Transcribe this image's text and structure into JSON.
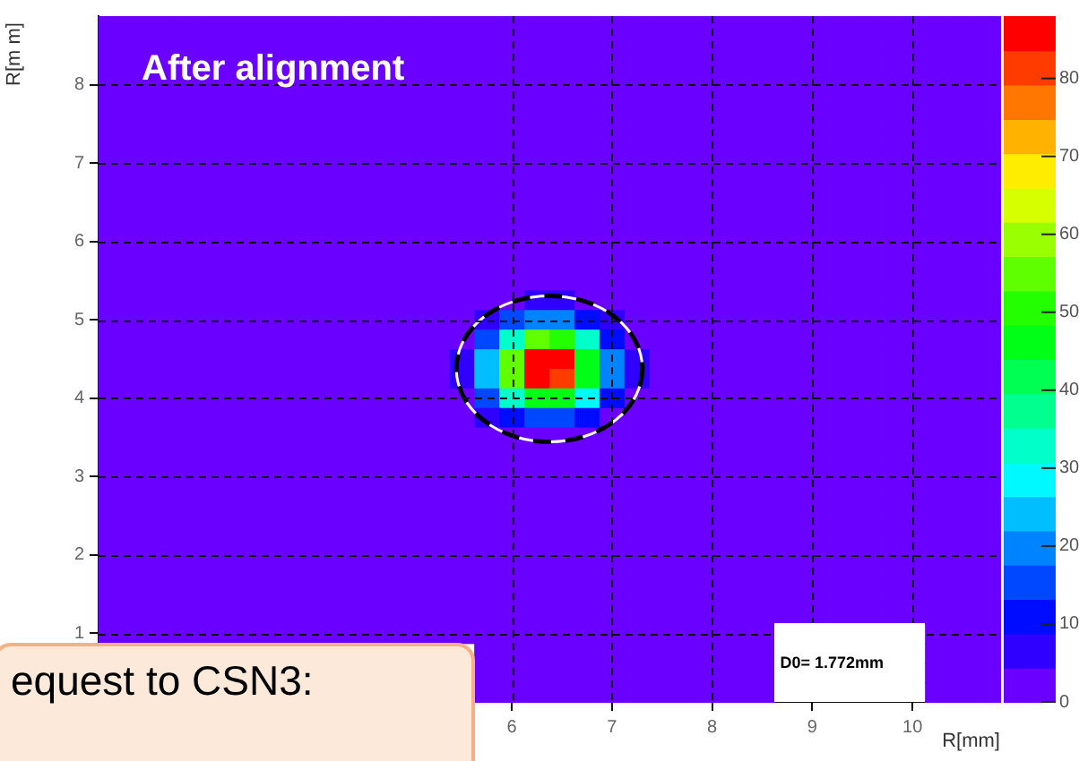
{
  "chart_data": {
    "type": "heatmap",
    "title": "After alignment",
    "xlabel": "R[mm]",
    "ylabel": "R[m m]",
    "annotations": [
      "D0= 1.772mm",
      "equest to CSN3:"
    ],
    "clim": [
      0,
      88
    ],
    "cticks": [
      0,
      10,
      20,
      30,
      40,
      50,
      60,
      70,
      80
    ],
    "grid": true,
    "legend": false,
    "categories": [
      null,
      null,
      null,
      null,
      null,
      null,
      null,
      null,
      null,
      null,
      null,
      null,
      null,
      null,
      null,
      null,
      "6",
      null,
      null,
      null,
      "7",
      null,
      null,
      null,
      "8",
      null,
      null,
      null,
      "9",
      null,
      null,
      null,
      "10",
      null,
      null,
      null
    ],
    "y_categories": [
      null,
      null,
      null,
      "8",
      null,
      null,
      null,
      "7",
      null,
      null,
      null,
      "6",
      null,
      null,
      null,
      "5",
      null,
      null,
      null,
      "4",
      null,
      null,
      null,
      "3",
      null,
      null,
      null,
      "2",
      null,
      null,
      null,
      "1",
      null,
      null,
      null
    ],
    "cells": [
      [
        0,
        0,
        0,
        0,
        0,
        0,
        0,
        0,
        0,
        0,
        0,
        0,
        0,
        0,
        0,
        0,
        0,
        0,
        0,
        0,
        0,
        0,
        0,
        0,
        0,
        0,
        0,
        0,
        0,
        0,
        0,
        0,
        0,
        0,
        0,
        0
      ],
      [
        0,
        0,
        0,
        0,
        0,
        0,
        0,
        0,
        0,
        0,
        0,
        0,
        0,
        0,
        0,
        0,
        0,
        0,
        0,
        0,
        0,
        0,
        0,
        0,
        0,
        0,
        0,
        0,
        0,
        0,
        0,
        0,
        0,
        0,
        0,
        0
      ],
      [
        0,
        0,
        0,
        0,
        0,
        0,
        0,
        0,
        0,
        0,
        0,
        0,
        0,
        0,
        0,
        0,
        0,
        0,
        0,
        0,
        0,
        0,
        0,
        0,
        0,
        0,
        0,
        0,
        0,
        0,
        0,
        0,
        0,
        0,
        0,
        0
      ],
      [
        0,
        0,
        0,
        0,
        0,
        0,
        0,
        0,
        0,
        0,
        0,
        0,
        0,
        0,
        0,
        0,
        0,
        0,
        0,
        0,
        0,
        0,
        0,
        0,
        0,
        0,
        0,
        0,
        0,
        0,
        0,
        0,
        0,
        0,
        0,
        0
      ],
      [
        0,
        0,
        0,
        0,
        0,
        0,
        0,
        0,
        0,
        0,
        0,
        0,
        0,
        0,
        0,
        0,
        0,
        0,
        0,
        0,
        0,
        0,
        0,
        0,
        0,
        0,
        0,
        0,
        0,
        0,
        0,
        0,
        0,
        0,
        0,
        0
      ],
      [
        0,
        0,
        0,
        0,
        0,
        0,
        0,
        0,
        0,
        0,
        0,
        0,
        0,
        0,
        0,
        0,
        0,
        0,
        0,
        0,
        0,
        0,
        0,
        0,
        0,
        0,
        0,
        0,
        0,
        0,
        0,
        0,
        0,
        0,
        0,
        0
      ],
      [
        0,
        0,
        0,
        0,
        0,
        0,
        0,
        0,
        0,
        0,
        0,
        0,
        0,
        0,
        0,
        0,
        0,
        0,
        0,
        0,
        0,
        0,
        0,
        0,
        0,
        0,
        0,
        0,
        0,
        0,
        0,
        0,
        0,
        0,
        0,
        0
      ],
      [
        0,
        0,
        0,
        0,
        0,
        0,
        0,
        0,
        0,
        0,
        0,
        0,
        0,
        0,
        0,
        0,
        0,
        0,
        0,
        0,
        0,
        0,
        0,
        0,
        0,
        0,
        0,
        0,
        0,
        0,
        0,
        0,
        0,
        0,
        0,
        0
      ],
      [
        0,
        0,
        0,
        0,
        0,
        0,
        0,
        0,
        0,
        0,
        0,
        0,
        0,
        0,
        0,
        0,
        0,
        0,
        0,
        0,
        0,
        0,
        0,
        0,
        0,
        0,
        0,
        0,
        0,
        0,
        0,
        0,
        0,
        0,
        0,
        0
      ],
      [
        0,
        0,
        0,
        0,
        0,
        0,
        0,
        0,
        0,
        0,
        0,
        0,
        0,
        0,
        0,
        0,
        0,
        0,
        0,
        0,
        0,
        0,
        0,
        0,
        0,
        0,
        0,
        0,
        0,
        0,
        0,
        0,
        0,
        0,
        0,
        0
      ],
      [
        0,
        0,
        0,
        0,
        0,
        0,
        0,
        0,
        0,
        0,
        0,
        0,
        0,
        0,
        0,
        0,
        0,
        0,
        0,
        0,
        0,
        0,
        0,
        0,
        0,
        0,
        0,
        0,
        0,
        0,
        0,
        0,
        0,
        0,
        0,
        0
      ],
      [
        0,
        0,
        0,
        0,
        0,
        0,
        0,
        0,
        0,
        0,
        0,
        0,
        0,
        0,
        0,
        0,
        0,
        0,
        0,
        0,
        0,
        0,
        0,
        0,
        0,
        0,
        0,
        0,
        0,
        0,
        0,
        0,
        0,
        0,
        0,
        0
      ],
      [
        0,
        0,
        0,
        0,
        0,
        0,
        0,
        0,
        0,
        0,
        0,
        0,
        0,
        0,
        0,
        0,
        0,
        0,
        0,
        0,
        0,
        0,
        0,
        0,
        0,
        0,
        0,
        0,
        0,
        0,
        0,
        0,
        0,
        0,
        0,
        0
      ],
      [
        0,
        0,
        0,
        0,
        0,
        0,
        0,
        0,
        0,
        0,
        0,
        0,
        0,
        0,
        0,
        0,
        0,
        0,
        0,
        0,
        0,
        0,
        0,
        0,
        0,
        0,
        0,
        0,
        0,
        0,
        0,
        0,
        0,
        0,
        0,
        0
      ],
      [
        0,
        0,
        0,
        0,
        0,
        0,
        0,
        0,
        0,
        0,
        0,
        0,
        0,
        0,
        0,
        2,
        3,
        5,
        5,
        3,
        1,
        0,
        0,
        0,
        0,
        0,
        0,
        0,
        0,
        0,
        0,
        0,
        0,
        0,
        0,
        0
      ],
      [
        0,
        0,
        0,
        0,
        0,
        0,
        0,
        0,
        0,
        0,
        0,
        0,
        0,
        0,
        2,
        6,
        14,
        21,
        20,
        13,
        5,
        1,
        0,
        0,
        0,
        0,
        0,
        0,
        0,
        0,
        0,
        0,
        0,
        0,
        0,
        0
      ],
      [
        0,
        0,
        0,
        0,
        0,
        0,
        0,
        0,
        0,
        0,
        0,
        0,
        0,
        0,
        4,
        16,
        35,
        53,
        51,
        31,
        13,
        3,
        0,
        0,
        0,
        0,
        0,
        0,
        0,
        0,
        0,
        0,
        0,
        0,
        0,
        0
      ],
      [
        0,
        0,
        0,
        0,
        0,
        0,
        0,
        0,
        0,
        0,
        0,
        0,
        0,
        0,
        7,
        25,
        55,
        87,
        84,
        48,
        19,
        5,
        0,
        0,
        0,
        0,
        0,
        0,
        0,
        0,
        0,
        0,
        0,
        0,
        0,
        0
      ],
      [
        0,
        0,
        0,
        0,
        0,
        0,
        0,
        0,
        0,
        0,
        0,
        0,
        0,
        0,
        6,
        23,
        53,
        84,
        80,
        46,
        19,
        5,
        0,
        0,
        0,
        0,
        0,
        0,
        0,
        0,
        0,
        0,
        0,
        0,
        0,
        0
      ],
      [
        0,
        0,
        0,
        0,
        0,
        0,
        0,
        0,
        0,
        0,
        0,
        0,
        0,
        0,
        4,
        14,
        31,
        46,
        44,
        27,
        11,
        3,
        0,
        0,
        0,
        0,
        0,
        0,
        0,
        0,
        0,
        0,
        0,
        0,
        0,
        0
      ],
      [
        0,
        0,
        0,
        0,
        0,
        0,
        0,
        0,
        0,
        0,
        0,
        0,
        0,
        0,
        1,
        5,
        11,
        17,
        16,
        10,
        4,
        1,
        0,
        0,
        0,
        0,
        0,
        0,
        0,
        0,
        0,
        0,
        0,
        0,
        0,
        0
      ],
      [
        0,
        0,
        0,
        0,
        0,
        0,
        0,
        0,
        0,
        0,
        0,
        0,
        0,
        0,
        0,
        1,
        2,
        3,
        3,
        2,
        1,
        0,
        0,
        0,
        0,
        0,
        0,
        0,
        0,
        0,
        0,
        0,
        0,
        0,
        0,
        0
      ],
      [
        0,
        0,
        0,
        0,
        0,
        0,
        0,
        0,
        0,
        0,
        0,
        0,
        0,
        0,
        0,
        0,
        0,
        0,
        0,
        0,
        0,
        0,
        0,
        0,
        0,
        0,
        0,
        0,
        0,
        0,
        0,
        0,
        0,
        0,
        0,
        0
      ],
      [
        0,
        0,
        0,
        0,
        0,
        0,
        0,
        0,
        0,
        0,
        0,
        0,
        0,
        0,
        0,
        0,
        0,
        0,
        0,
        0,
        0,
        0,
        0,
        0,
        0,
        0,
        0,
        0,
        0,
        0,
        0,
        0,
        0,
        0,
        0,
        0
      ],
      [
        0,
        0,
        0,
        0,
        0,
        0,
        0,
        0,
        0,
        0,
        0,
        0,
        0,
        0,
        0,
        0,
        0,
        0,
        0,
        0,
        0,
        0,
        0,
        0,
        0,
        0,
        0,
        0,
        0,
        0,
        0,
        0,
        0,
        0,
        0,
        0
      ],
      [
        0,
        0,
        0,
        0,
        0,
        0,
        0,
        0,
        0,
        0,
        0,
        0,
        0,
        0,
        0,
        0,
        0,
        0,
        0,
        0,
        0,
        0,
        0,
        0,
        0,
        0,
        0,
        0,
        0,
        0,
        0,
        0,
        0,
        0,
        0,
        0
      ],
      [
        0,
        0,
        0,
        0,
        0,
        0,
        0,
        0,
        0,
        0,
        0,
        0,
        0,
        0,
        0,
        0,
        0,
        0,
        0,
        0,
        0,
        0,
        0,
        0,
        0,
        0,
        0,
        0,
        0,
        0,
        0,
        0,
        0,
        0,
        0,
        0
      ],
      [
        0,
        0,
        0,
        0,
        0,
        0,
        0,
        0,
        0,
        0,
        0,
        0,
        0,
        0,
        0,
        0,
        0,
        0,
        0,
        0,
        0,
        0,
        0,
        0,
        0,
        0,
        0,
        0,
        0,
        0,
        0,
        0,
        0,
        0,
        0,
        0
      ],
      [
        0,
        0,
        0,
        0,
        0,
        0,
        0,
        0,
        0,
        0,
        0,
        0,
        0,
        0,
        0,
        0,
        0,
        0,
        0,
        0,
        0,
        0,
        0,
        0,
        0,
        0,
        0,
        0,
        0,
        0,
        0,
        0,
        0,
        0,
        0,
        0
      ],
      [
        0,
        0,
        0,
        0,
        0,
        0,
        0,
        0,
        0,
        0,
        0,
        0,
        0,
        0,
        0,
        0,
        0,
        0,
        0,
        0,
        0,
        0,
        0,
        0,
        0,
        0,
        0,
        0,
        0,
        0,
        0,
        0,
        0,
        0,
        0,
        0
      ],
      [
        0,
        0,
        0,
        0,
        0,
        0,
        0,
        0,
        0,
        0,
        0,
        0,
        0,
        0,
        0,
        0,
        0,
        0,
        0,
        0,
        0,
        0,
        0,
        0,
        0,
        0,
        0,
        0,
        0,
        0,
        0,
        0,
        0,
        0,
        0,
        0
      ],
      [
        0,
        0,
        0,
        0,
        0,
        0,
        0,
        0,
        0,
        0,
        0,
        0,
        0,
        0,
        0,
        0,
        0,
        0,
        0,
        0,
        0,
        0,
        0,
        0,
        0,
        0,
        0,
        null,
        null,
        null,
        null,
        null,
        null,
        0,
        0,
        0
      ],
      [
        null,
        null,
        null,
        null,
        null,
        null,
        null,
        null,
        null,
        null,
        null,
        null,
        null,
        null,
        null,
        0,
        0,
        0,
        0,
        0,
        0,
        0,
        0,
        0,
        0,
        0,
        0,
        null,
        null,
        null,
        null,
        null,
        null,
        0,
        0,
        0
      ],
      [
        null,
        null,
        null,
        null,
        null,
        null,
        null,
        null,
        null,
        null,
        null,
        null,
        null,
        null,
        null,
        0,
        0,
        0,
        0,
        0,
        0,
        0,
        0,
        0,
        0,
        0,
        0,
        null,
        null,
        null,
        null,
        null,
        null,
        0,
        0,
        0
      ],
      [
        null,
        null,
        null,
        null,
        null,
        null,
        null,
        null,
        null,
        null,
        null,
        null,
        null,
        null,
        null,
        0,
        0,
        0,
        0,
        0,
        0,
        0,
        0,
        0,
        0,
        0,
        0,
        null,
        null,
        null,
        null,
        null,
        null,
        0,
        0,
        0
      ]
    ]
  }
}
